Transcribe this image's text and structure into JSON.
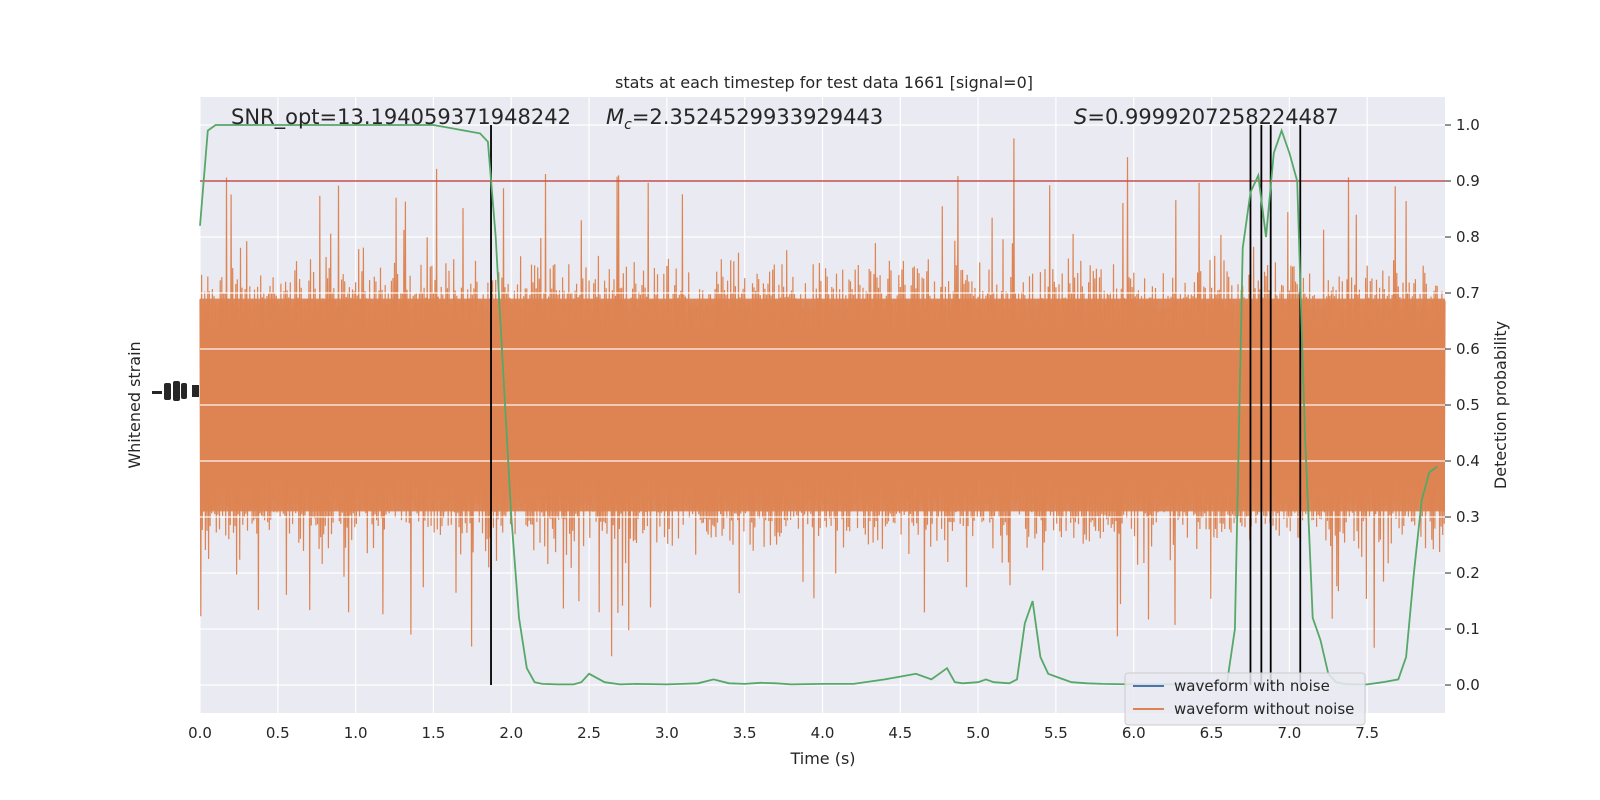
{
  "chart_data": {
    "type": "line",
    "title": "stats at each timestep for test data 1661 [signal=0]",
    "xlabel": "Time (s)",
    "ylabel_left": "Whitened strain",
    "ylabel_right": "Detection probability",
    "xlim": [
      0.0,
      8.0
    ],
    "ylim_right": [
      -0.05,
      1.05
    ],
    "x_ticks": [
      "0.0",
      "0.5",
      "1.0",
      "1.5",
      "2.0",
      "2.5",
      "3.0",
      "3.5",
      "4.0",
      "4.5",
      "5.0",
      "5.5",
      "6.0",
      "6.5",
      "7.0",
      "7.5"
    ],
    "x_tick_values": [
      0.0,
      0.5,
      1.0,
      1.5,
      2.0,
      2.5,
      3.0,
      3.5,
      4.0,
      4.5,
      5.0,
      5.5,
      6.0,
      6.5,
      7.0,
      7.5
    ],
    "y_right_ticks": [
      "0.0",
      "0.1",
      "0.2",
      "0.3",
      "0.4",
      "0.5",
      "0.6",
      "0.7",
      "0.8",
      "0.9",
      "1.0"
    ],
    "y_right_tick_values": [
      0.0,
      0.1,
      0.2,
      0.3,
      0.4,
      0.5,
      0.6,
      0.7,
      0.8,
      0.9,
      1.0
    ],
    "grid": true,
    "legend_position": "lower-right",
    "annotations": {
      "snr": "SNR_opt=13.194059371948242",
      "mc_symbol": "M",
      "mc_sub": "c",
      "mc_value": "=2.3524529933929443",
      "s_symbol": "S",
      "s_value": "=0.9999207258224487"
    },
    "threshold": 0.9,
    "detection_times": [
      1.87,
      6.75,
      6.82,
      6.88,
      7.07
    ],
    "series": [
      {
        "name": "waveform with noise",
        "color": "#4c72b0",
        "style": "legend-only"
      },
      {
        "name": "waveform without noise",
        "color": "#dd8452",
        "style": "strain-noise",
        "note_shape": "dense noise band centered at probability 0.5"
      },
      {
        "name": "",
        "color": "#55a868",
        "style": "probability",
        "x": [
          0.0,
          0.05,
          0.1,
          0.2,
          0.3,
          0.5,
          0.8,
          1.0,
          1.2,
          1.5,
          1.6,
          1.7,
          1.8,
          1.85,
          1.9,
          1.95,
          2.0,
          2.05,
          2.1,
          2.15,
          2.2,
          2.3,
          2.4,
          2.45,
          2.5,
          2.6,
          2.7,
          2.8,
          3.0,
          3.1,
          3.2,
          3.3,
          3.4,
          3.5,
          3.6,
          3.7,
          3.8,
          4.0,
          4.2,
          4.4,
          4.5,
          4.6,
          4.7,
          4.75,
          4.8,
          4.85,
          4.9,
          5.0,
          5.05,
          5.1,
          5.2,
          5.25,
          5.3,
          5.35,
          5.4,
          5.45,
          5.5,
          5.6,
          5.7,
          5.8,
          6.0,
          6.2,
          6.4,
          6.5,
          6.6,
          6.65,
          6.7,
          6.75,
          6.8,
          6.85,
          6.9,
          6.95,
          7.0,
          7.05,
          7.1,
          7.15,
          7.2,
          7.25,
          7.3,
          7.35,
          7.4,
          7.5,
          7.6,
          7.7,
          7.75,
          7.8,
          7.85,
          7.9,
          7.95
        ],
        "values": [
          0.82,
          0.99,
          1.0,
          1.0,
          1.0,
          1.0,
          1.0,
          1.0,
          1.0,
          1.0,
          0.995,
          0.99,
          0.985,
          0.97,
          0.8,
          0.55,
          0.3,
          0.12,
          0.03,
          0.005,
          0.002,
          0.001,
          0.001,
          0.005,
          0.02,
          0.005,
          0.001,
          0.002,
          0.001,
          0.002,
          0.003,
          0.01,
          0.003,
          0.002,
          0.004,
          0.003,
          0.001,
          0.002,
          0.002,
          0.01,
          0.015,
          0.02,
          0.01,
          0.02,
          0.03,
          0.005,
          0.003,
          0.005,
          0.01,
          0.005,
          0.003,
          0.01,
          0.11,
          0.15,
          0.05,
          0.02,
          0.015,
          0.005,
          0.003,
          0.002,
          0.001,
          0.001,
          0.002,
          0.003,
          0.005,
          0.1,
          0.78,
          0.88,
          0.91,
          0.8,
          0.95,
          0.99,
          0.95,
          0.9,
          0.45,
          0.12,
          0.08,
          0.02,
          0.005,
          0.002,
          0.001,
          0.001,
          0.005,
          0.01,
          0.05,
          0.2,
          0.33,
          0.38,
          0.39
        ]
      }
    ]
  }
}
